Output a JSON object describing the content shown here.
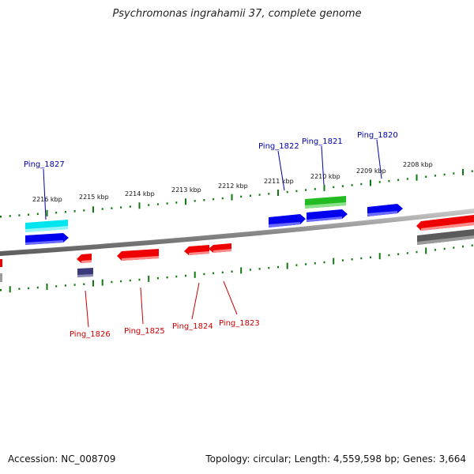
{
  "title": "Psychromonas ingrahamii 37, complete genome",
  "footer": {
    "accession": "Accession: NC_008709",
    "topology": "Topology: circular; Length: 4,559,598 bp; Genes: 3,664"
  },
  "scale_labels": [
    "2216 kbp",
    "2215 kbp",
    "2214 kbp",
    "2213 kbp",
    "2212 kbp",
    "2211 kbp",
    "2210 kbp",
    "2209 kbp",
    "2208 kbp"
  ],
  "genes_top": [
    {
      "label": "Ping_1827",
      "color": "#0000aa"
    },
    {
      "label": "Ping_1822",
      "color": "#0000aa"
    },
    {
      "label": "Ping_1821",
      "color": "#0000aa"
    },
    {
      "label": "Ping_1820",
      "color": "#0000aa"
    }
  ],
  "genes_bottom": [
    {
      "label": "Ping_1826",
      "color": "#cc0000"
    },
    {
      "label": "Ping_1825",
      "color": "#cc0000"
    },
    {
      "label": "Ping_1824",
      "color": "#cc0000"
    },
    {
      "label": "Ping_1823",
      "color": "#cc0000"
    }
  ],
  "colors": {
    "forward": "#0000ee",
    "reverse": "#ee0000",
    "cyan": "#00e5ee",
    "green": "#22bb22",
    "grey": "#555555",
    "purple": "#3a3a7a",
    "ticks": "#117711"
  }
}
